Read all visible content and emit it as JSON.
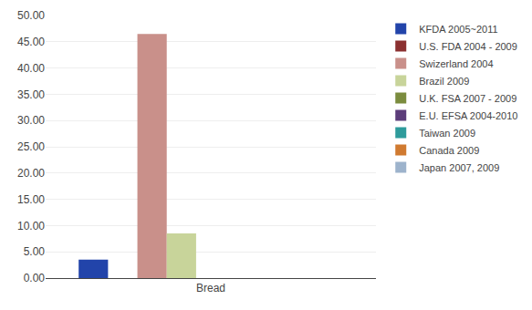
{
  "chart_data": {
    "type": "bar",
    "categories": [
      "Bread"
    ],
    "series": [
      {
        "name": "KFDA 2005~2011",
        "color": "#2244aa",
        "values": [
          3.5
        ]
      },
      {
        "name": "U.S. FDA 2004 - 2009",
        "color": "#8b3030",
        "values": [
          0.0
        ]
      },
      {
        "name": "Swizerland 2004",
        "color": "#c9908a",
        "values": [
          46.5
        ]
      },
      {
        "name": "Brazil 2009",
        "color": "#c8d49a",
        "values": [
          8.5
        ]
      },
      {
        "name": "U.K. FSA 2007 - 2009",
        "color": "#7b8c3e",
        "values": [
          0.0
        ]
      },
      {
        "name": "E.U. EFSA 2004-2010",
        "color": "#5c3d7a",
        "values": [
          0.0
        ]
      },
      {
        "name": "Taiwan 2009",
        "color": "#2e9b9b",
        "values": [
          0.0
        ]
      },
      {
        "name": "Canada 2009",
        "color": "#d07a30",
        "values": [
          0.0
        ]
      },
      {
        "name": "Japan 2007, 2009",
        "color": "#9db3cc",
        "values": [
          0.0
        ]
      }
    ],
    "ylim": [
      0,
      50
    ],
    "yticks": [
      {
        "value": 0,
        "label": "0.00"
      },
      {
        "value": 5,
        "label": "5.00"
      },
      {
        "value": 10,
        "label": "10.00"
      },
      {
        "value": 15,
        "label": "15.00"
      },
      {
        "value": 20,
        "label": "20.00"
      },
      {
        "value": 25,
        "label": "25.00"
      },
      {
        "value": 30,
        "label": "30.00"
      },
      {
        "value": 35,
        "label": "35.00"
      },
      {
        "value": 40,
        "label": "40.00"
      },
      {
        "value": 45,
        "label": "45.00"
      },
      {
        "value": 50,
        "label": "50.00"
      }
    ],
    "grid": true,
    "legend": "right"
  }
}
